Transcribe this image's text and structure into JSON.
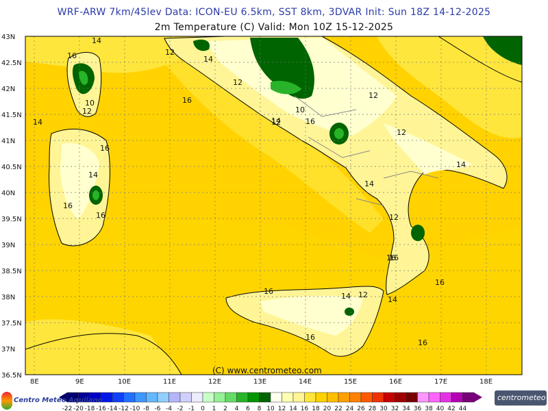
{
  "header": {
    "title_line1": "WRF-ARW 7km/45lev   Data: ICON-EU 6.5km, SST 8km, 3DVAR   Init: Sun 18Z 14-12-2025",
    "title_line2": "2m Temperature (C)  Valid: Mon 10Z 15-12-2025"
  },
  "map": {
    "lat_labels": [
      "43N",
      "42.5N",
      "42N",
      "41.5N",
      "41N",
      "40.5N",
      "40N",
      "39.5N",
      "39N",
      "38.5N",
      "38N",
      "37.5N",
      "37N",
      "36.5N"
    ],
    "lon_labels": [
      "8E",
      "9E",
      "10E",
      "11E",
      "12E",
      "13E",
      "14E",
      "15E",
      "16E",
      "17E",
      "18E"
    ],
    "contour_labels": [
      "14",
      "16",
      "12",
      "14",
      "16",
      "12",
      "10",
      "12",
      "14",
      "12",
      "16",
      "16",
      "10",
      "12",
      "16",
      "14",
      "16",
      "14",
      "12",
      "14",
      "12",
      "14",
      "16",
      "16",
      "16",
      "14",
      "12",
      "14",
      "16",
      "16",
      "16"
    ],
    "copyright": "(C) www.centrometeo.com"
  },
  "legend": {
    "labels": [
      "-22",
      "-20",
      "-18",
      "-16",
      "-14",
      "-12",
      "-10",
      "-8",
      "-6",
      "-4",
      "-2",
      "-1",
      "0",
      "1",
      "2",
      "4",
      "6",
      "8",
      "10",
      "12",
      "14",
      "16",
      "18",
      "20",
      "22",
      "24",
      "26",
      "28",
      "30",
      "32",
      "34",
      "36",
      "38",
      "40",
      "42",
      "44"
    ],
    "colors": [
      "#000070",
      "#000098",
      "#0000c8",
      "#0018e6",
      "#1040f8",
      "#2070ff",
      "#3c98ff",
      "#64b8ff",
      "#90cffe",
      "#b4b4fa",
      "#d0d0fc",
      "#ececfe",
      "#c8ffc8",
      "#96f096",
      "#64dc64",
      "#28b428",
      "#009600",
      "#006400",
      "#fffff0",
      "#ffffb4",
      "#fff596",
      "#ffe63c",
      "#ffd200",
      "#ffbe00",
      "#ffa000",
      "#ff8200",
      "#ff5a00",
      "#f03200",
      "#c80000",
      "#a00000",
      "#780000",
      "#ff96ff",
      "#ff64ff",
      "#e632e6",
      "#b400b4",
      "#780078"
    ],
    "left_logo_text": "Centro Meteo Aquilano",
    "right_logo_text": "centrometeo"
  }
}
